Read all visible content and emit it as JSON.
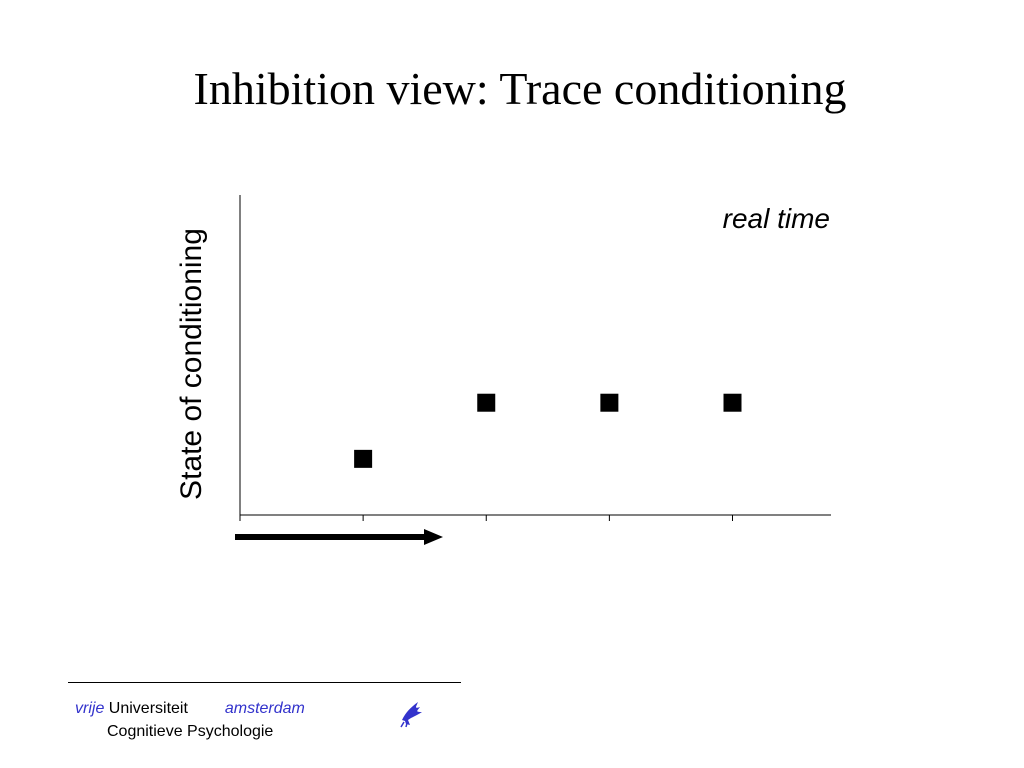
{
  "slide": {
    "title": "Inhibition view: Trace conditioning"
  },
  "chart_data": {
    "type": "scatter",
    "ylabel": "State of conditioning",
    "annotation": "real time",
    "x_ticks": 5,
    "marker": "square",
    "marker_color": "#000000",
    "points": [
      {
        "x": 1,
        "y": 1
      },
      {
        "x": 2,
        "y": 2
      },
      {
        "x": 3,
        "y": 2
      },
      {
        "x": 4,
        "y": 2
      }
    ],
    "xlim": [
      0,
      4.8
    ],
    "ylim": [
      0,
      5.7
    ],
    "arrow": "pointing right below the x-axis"
  },
  "footer": {
    "vrije": "vrije",
    "universiteit": "Universiteit",
    "amsterdam": "amsterdam",
    "department": "Cognitieve Psychologie",
    "accent_color": "#3333cc",
    "logo": "vu-griffin-logo"
  }
}
